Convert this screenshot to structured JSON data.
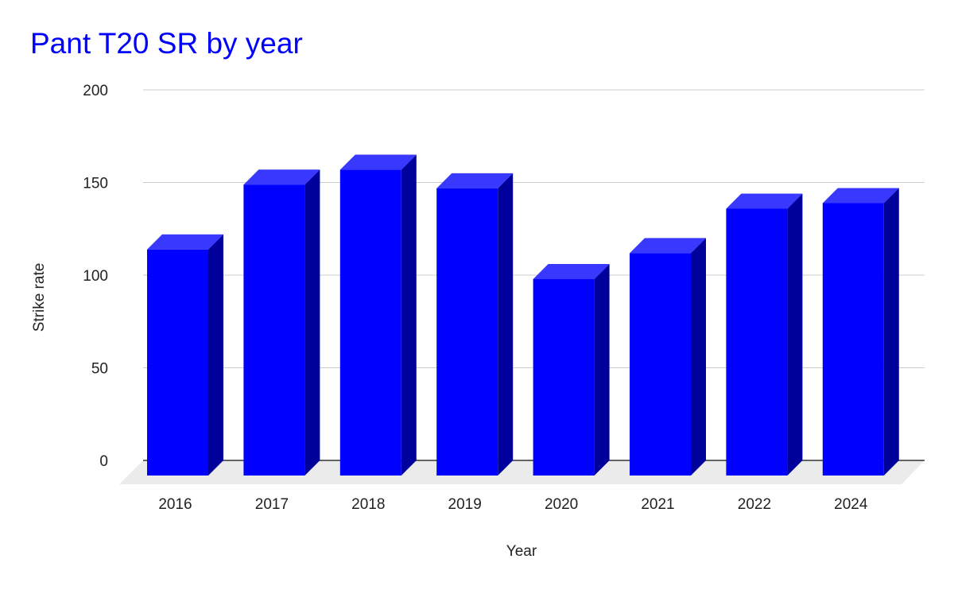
{
  "chart_data": {
    "type": "bar",
    "title": "Pant T20 SR by year",
    "xlabel": "Year",
    "ylabel": "Strike rate",
    "categories": [
      "2016",
      "2017",
      "2018",
      "2019",
      "2020",
      "2021",
      "2022",
      "2024"
    ],
    "values": [
      122,
      157,
      165,
      155,
      106,
      120,
      144,
      147
    ],
    "ylim": [
      0,
      200
    ],
    "yticks": [
      0,
      50,
      100,
      150,
      200
    ],
    "grid": true,
    "legend": "none",
    "three_d": true,
    "colors": {
      "title": "#0000ff",
      "bar_front": "#0000ff",
      "bar_top": "#3838ff",
      "bar_side": "#00009a",
      "floor": "#ebebeb",
      "grid": "#cccccc",
      "baseline": "#333333",
      "text": "#222222"
    }
  }
}
